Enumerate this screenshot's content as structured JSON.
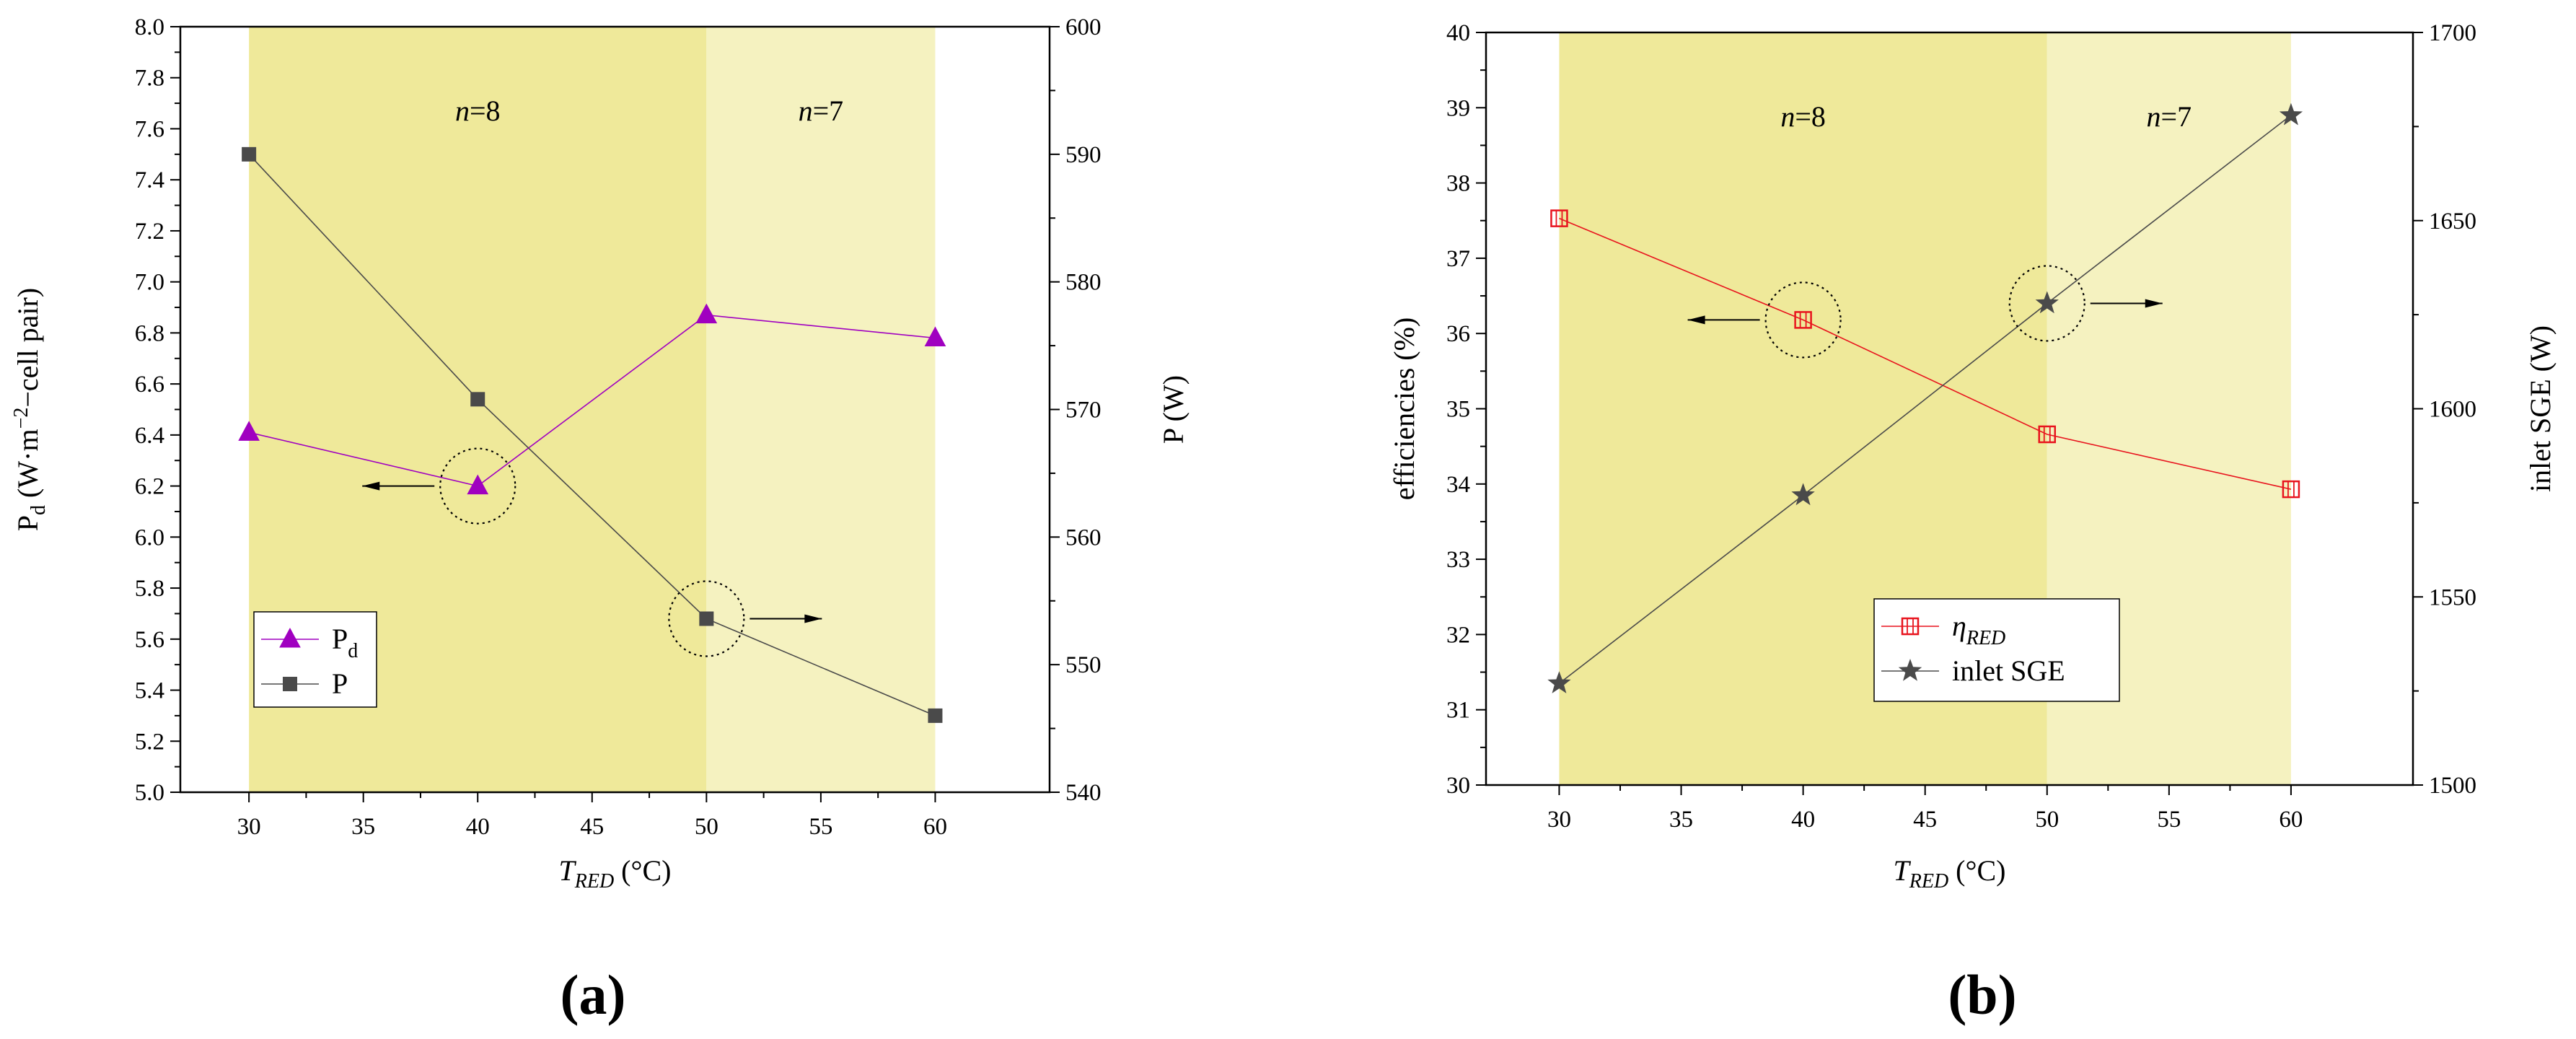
{
  "chart_data": [
    {
      "panel": "(a)",
      "type": "line",
      "bands": [
        {
          "label_italic": "n",
          "label_rest": "=8",
          "x_range": [
            30,
            50
          ],
          "color": "#efe99a"
        },
        {
          "label_italic": "n",
          "label_rest": "=7",
          "x_range": [
            50,
            60
          ],
          "color": "#f5f2c0"
        }
      ],
      "xlabel": {
        "main": "T",
        "sub": "RED",
        "unit": " (°C)"
      },
      "xlim": [
        27,
        65
      ],
      "xticks": [
        "30",
        "35",
        "40",
        "45",
        "50",
        "55",
        "60"
      ],
      "y_left": {
        "label_main": "P",
        "label_sub": "d",
        "label_rest": " (W·m",
        "label_sup": "−2",
        "label_tail": "−cell pair)",
        "lim": [
          5.0,
          8.0
        ],
        "ticks": [
          "5.0",
          "5.2",
          "5.4",
          "5.6",
          "5.8",
          "6.0",
          "6.2",
          "6.4",
          "6.6",
          "6.8",
          "7.0",
          "7.2",
          "7.4",
          "7.6",
          "7.8",
          "8.0"
        ]
      },
      "y_right": {
        "label": "P (W)",
        "lim": [
          540,
          600
        ],
        "ticks": [
          "540",
          "550",
          "560",
          "570",
          "580",
          "590",
          "600"
        ]
      },
      "series": [
        {
          "name": "P",
          "name_sub": "d",
          "axis": "left",
          "color": "#a000c0",
          "marker": "triangle",
          "x": [
            30,
            40,
            50,
            60
          ],
          "values": [
            6.41,
            6.2,
            6.87,
            6.78
          ]
        },
        {
          "name": "P",
          "name_sub": "",
          "axis": "right",
          "color": "#4a4a4a",
          "marker": "square",
          "x": [
            30,
            40,
            50,
            60
          ],
          "values": [
            590.0,
            570.8,
            553.6,
            546.0
          ]
        }
      ],
      "annotations": [
        {
          "x": 40,
          "y": 6.2,
          "axis": "left",
          "arrow": "left"
        },
        {
          "x": 50,
          "y": 553.6,
          "axis": "right",
          "arrow": "right"
        }
      ],
      "legend": "bottom-left"
    },
    {
      "panel": "(b)",
      "type": "line",
      "bands": [
        {
          "label_italic": "n",
          "label_rest": "=8",
          "x_range": [
            30,
            50
          ],
          "color": "#efe99a"
        },
        {
          "label_italic": "n",
          "label_rest": "=7",
          "x_range": [
            50,
            60
          ],
          "color": "#f5f2c0"
        }
      ],
      "xlabel": {
        "main": "T",
        "sub": "RED",
        "unit": " (°C)"
      },
      "xlim": [
        27,
        65
      ],
      "xticks": [
        "30",
        "35",
        "40",
        "45",
        "50",
        "55",
        "60"
      ],
      "y_left": {
        "label_main": "efficiencies (%)",
        "label_sub": "",
        "label_rest": "",
        "label_sup": "",
        "label_tail": "",
        "lim": [
          30,
          40
        ],
        "ticks": [
          "30",
          "31",
          "32",
          "33",
          "34",
          "35",
          "36",
          "37",
          "38",
          "39",
          "40"
        ]
      },
      "y_right": {
        "label": "inlet SGE (W)",
        "lim": [
          1500,
          1700
        ],
        "ticks": [
          "1500",
          "1550",
          "1600",
          "1650",
          "1700"
        ]
      },
      "series": [
        {
          "name": "η",
          "name_sub": "RED",
          "axis": "left",
          "color": "#e8141e",
          "marker": "hollow-square",
          "x": [
            30,
            40,
            50,
            60
          ],
          "values": [
            37.53,
            36.18,
            34.66,
            33.93
          ]
        },
        {
          "name": "inlet SGE",
          "name_sub": "",
          "axis": "right",
          "color": "#4a4a4a",
          "marker": "star",
          "x": [
            30,
            40,
            50,
            60
          ],
          "values": [
            1527,
            1577,
            1628,
            1678
          ]
        }
      ],
      "annotations": [
        {
          "x": 40,
          "y": 36.18,
          "axis": "left",
          "arrow": "left"
        },
        {
          "x": 50,
          "y": 1628,
          "axis": "right",
          "arrow": "right"
        }
      ],
      "legend": "bottom-right"
    }
  ]
}
